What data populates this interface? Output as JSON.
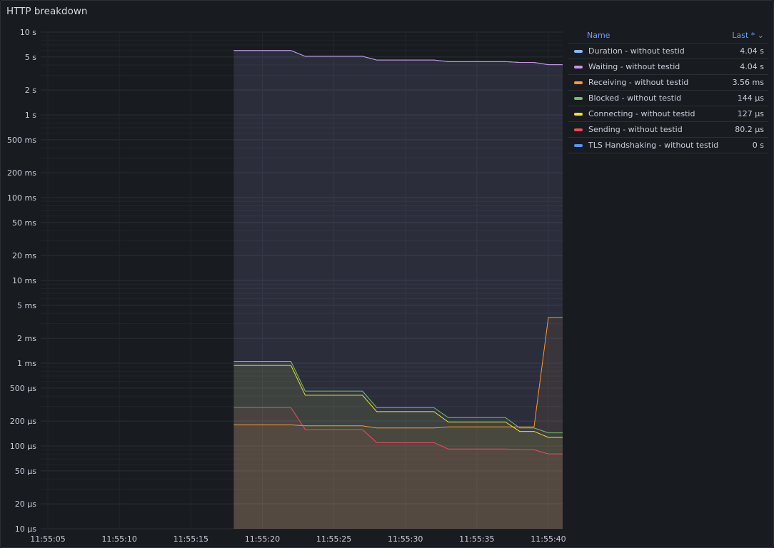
{
  "panel": {
    "title": "HTTP breakdown"
  },
  "legend": {
    "name_header": "Name",
    "last_header": "Last * ⌄",
    "items": [
      {
        "name": "Duration - without testid",
        "value": "4.04 s",
        "color": "#8ab8ff"
      },
      {
        "name": "Waiting - without testid",
        "value": "4.04 s",
        "color": "#ca95e5"
      },
      {
        "name": "Receiving - without testid",
        "value": "3.56 ms",
        "color": "#ff9830"
      },
      {
        "name": "Blocked - without testid",
        "value": "144 µs",
        "color": "#73bf69"
      },
      {
        "name": "Connecting - without testid",
        "value": "127 µs",
        "color": "#fade2a"
      },
      {
        "name": "Sending - without testid",
        "value": "80.2 µs",
        "color": "#f2495c"
      },
      {
        "name": "TLS Handshaking - without testid",
        "value": "0 s",
        "color": "#5794f2"
      }
    ]
  },
  "chart_data": {
    "type": "line",
    "yscale": "log",
    "ylim_seconds": [
      1e-05,
      10
    ],
    "y_ticks": [
      {
        "v": 10,
        "label": "10 s"
      },
      {
        "v": 5,
        "label": "5 s"
      },
      {
        "v": 2,
        "label": "2 s"
      },
      {
        "v": 1,
        "label": "1 s"
      },
      {
        "v": 0.5,
        "label": "500 ms"
      },
      {
        "v": 0.2,
        "label": "200 ms"
      },
      {
        "v": 0.1,
        "label": "100 ms"
      },
      {
        "v": 0.05,
        "label": "50 ms"
      },
      {
        "v": 0.02,
        "label": "20 ms"
      },
      {
        "v": 0.01,
        "label": "10 ms"
      },
      {
        "v": 0.005,
        "label": "5 ms"
      },
      {
        "v": 0.002,
        "label": "2 ms"
      },
      {
        "v": 0.001,
        "label": "1 ms"
      },
      {
        "v": 0.0005,
        "label": "500 µs"
      },
      {
        "v": 0.0002,
        "label": "200 µs"
      },
      {
        "v": 0.0001,
        "label": "100 µs"
      },
      {
        "v": 5e-05,
        "label": "50 µs"
      },
      {
        "v": 2e-05,
        "label": "20 µs"
      },
      {
        "v": 1e-05,
        "label": "10 µs"
      }
    ],
    "x_ticks": [
      "11:55:05",
      "11:55:10",
      "11:55:15",
      "11:55:20",
      "11:55:25",
      "11:55:30",
      "11:55:35",
      "11:55:40"
    ],
    "xlim": [
      "11:55:04.5",
      "11:55:41"
    ],
    "x": [
      "11:55:18",
      "11:55:22",
      "11:55:23",
      "11:55:27",
      "11:55:28",
      "11:55:32",
      "11:55:33",
      "11:55:37",
      "11:55:38",
      "11:55:39",
      "11:55:40",
      "11:55:41"
    ],
    "series": [
      {
        "name": "Duration - without testid",
        "color": "#8ab8ff",
        "values": [
          6.0,
          6.0,
          5.1,
          5.1,
          4.6,
          4.6,
          4.4,
          4.4,
          4.3,
          4.3,
          4.04,
          4.04
        ]
      },
      {
        "name": "Waiting - without testid",
        "color": "#ca95e5",
        "values": [
          6.0,
          6.0,
          5.1,
          5.1,
          4.6,
          4.6,
          4.4,
          4.4,
          4.3,
          4.3,
          4.04,
          4.04
        ]
      },
      {
        "name": "Receiving - without testid",
        "color": "#ff9830",
        "values": [
          0.00018,
          0.00018,
          0.000175,
          0.000175,
          0.000165,
          0.000165,
          0.00017,
          0.00017,
          0.00017,
          0.00017,
          0.00356,
          0.00356
        ]
      },
      {
        "name": "Blocked - without testid",
        "color": "#73bf69",
        "values": [
          0.00105,
          0.00105,
          0.00046,
          0.00046,
          0.00029,
          0.00029,
          0.00022,
          0.00022,
          0.000165,
          0.000165,
          0.000144,
          0.000144
        ]
      },
      {
        "name": "Connecting - without testid",
        "color": "#fade2a",
        "values": [
          0.00094,
          0.00094,
          0.00041,
          0.00041,
          0.00026,
          0.00026,
          0.000195,
          0.000195,
          0.00015,
          0.00015,
          0.000127,
          0.000127
        ]
      },
      {
        "name": "Sending - without testid",
        "color": "#f2495c",
        "values": [
          0.00029,
          0.00029,
          0.000158,
          0.000158,
          0.00011,
          0.00011,
          9.2e-05,
          9.2e-05,
          9e-05,
          9e-05,
          8.02e-05,
          8.02e-05
        ]
      }
    ],
    "grid": true,
    "legend_position": "right"
  }
}
